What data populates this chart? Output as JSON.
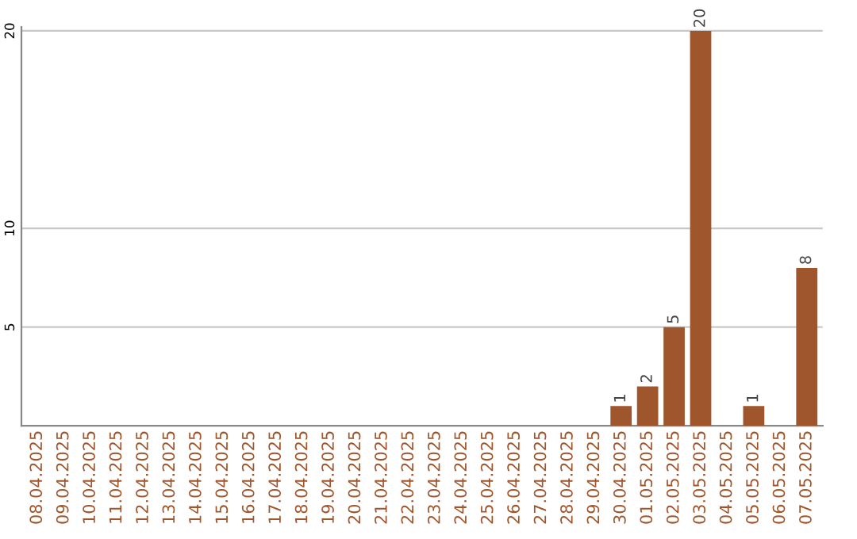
{
  "chart_data": {
    "type": "bar",
    "categories": [
      "08.04.2025",
      "09.04.2025",
      "10.04.2025",
      "11.04.2025",
      "12.04.2025",
      "13.04.2025",
      "14.04.2025",
      "15.04.2025",
      "16.04.2025",
      "17.04.2025",
      "18.04.2025",
      "19.04.2025",
      "20.04.2025",
      "21.04.2025",
      "22.04.2025",
      "23.04.2025",
      "24.04.2025",
      "25.04.2025",
      "26.04.2025",
      "27.04.2025",
      "28.04.2025",
      "29.04.2025",
      "30.04.2025",
      "01.05.2025",
      "02.05.2025",
      "03.05.2025",
      "04.05.2025",
      "05.05.2025",
      "06.05.2025",
      "07.05.2025"
    ],
    "values": [
      0,
      0,
      0,
      0,
      0,
      0,
      0,
      0,
      0,
      0,
      0,
      0,
      0,
      0,
      0,
      0,
      0,
      0,
      0,
      0,
      0,
      0,
      1,
      2,
      5,
      20,
      0,
      1,
      0,
      8
    ],
    "value_labels": [
      null,
      null,
      null,
      null,
      null,
      null,
      null,
      null,
      null,
      null,
      null,
      null,
      null,
      null,
      null,
      null,
      null,
      null,
      null,
      null,
      null,
      null,
      "1",
      "2",
      "5",
      "20",
      null,
      "1",
      null,
      "8"
    ],
    "color": "#a0562c",
    "ylim": [
      0,
      20.2
    ],
    "yticks": [
      5,
      10,
      20
    ],
    "grid": "y"
  }
}
